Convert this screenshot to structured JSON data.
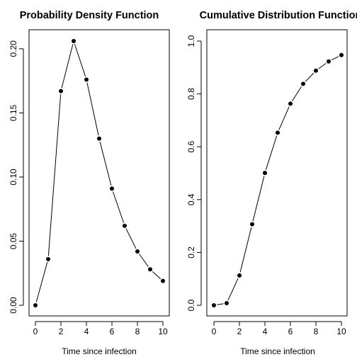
{
  "chart_data": [
    {
      "type": "line",
      "title": "Probability Density Function",
      "xlabel": "Time since infection",
      "ylabel": "",
      "xlim": [
        0,
        10
      ],
      "ylim": [
        0,
        0.206
      ],
      "x_ticks": [
        0,
        2,
        4,
        6,
        8,
        10
      ],
      "x_tick_labels": [
        "0",
        "2",
        "4",
        "6",
        "8",
        "10"
      ],
      "y_ticks": [
        0,
        0.05,
        0.1,
        0.15,
        0.2
      ],
      "y_tick_labels": [
        "0.00",
        "0.05",
        "0.10",
        "0.15",
        "0.20"
      ],
      "grid": false,
      "series": [
        {
          "x": [
            0,
            1,
            2,
            3,
            4,
            5,
            6,
            7,
            8,
            9,
            10
          ],
          "y": [
            0.0,
            0.036,
            0.167,
            0.206,
            0.176,
            0.13,
            0.091,
            0.062,
            0.042,
            0.028,
            0.019
          ]
        }
      ]
    },
    {
      "type": "line",
      "title": "Cumulative Distribution Function",
      "xlabel": "Time since infection",
      "ylabel": "",
      "xlim": [
        0,
        10
      ],
      "ylim": [
        0,
        1
      ],
      "x_ticks": [
        0,
        2,
        4,
        6,
        8,
        10
      ],
      "x_tick_labels": [
        "0",
        "2",
        "4",
        "6",
        "8",
        "10"
      ],
      "y_ticks": [
        0,
        0.2,
        0.4,
        0.6,
        0.8,
        1.0
      ],
      "y_tick_labels": [
        "0.0",
        "0.2",
        "0.4",
        "0.6",
        "0.8",
        "1.0"
      ],
      "grid": false,
      "series": [
        {
          "x": [
            0,
            1,
            2,
            3,
            4,
            5,
            6,
            7,
            8,
            9,
            10
          ],
          "y": [
            0.0,
            0.008,
            0.113,
            0.307,
            0.501,
            0.653,
            0.763,
            0.838,
            0.888,
            0.923,
            0.947
          ]
        }
      ]
    }
  ]
}
